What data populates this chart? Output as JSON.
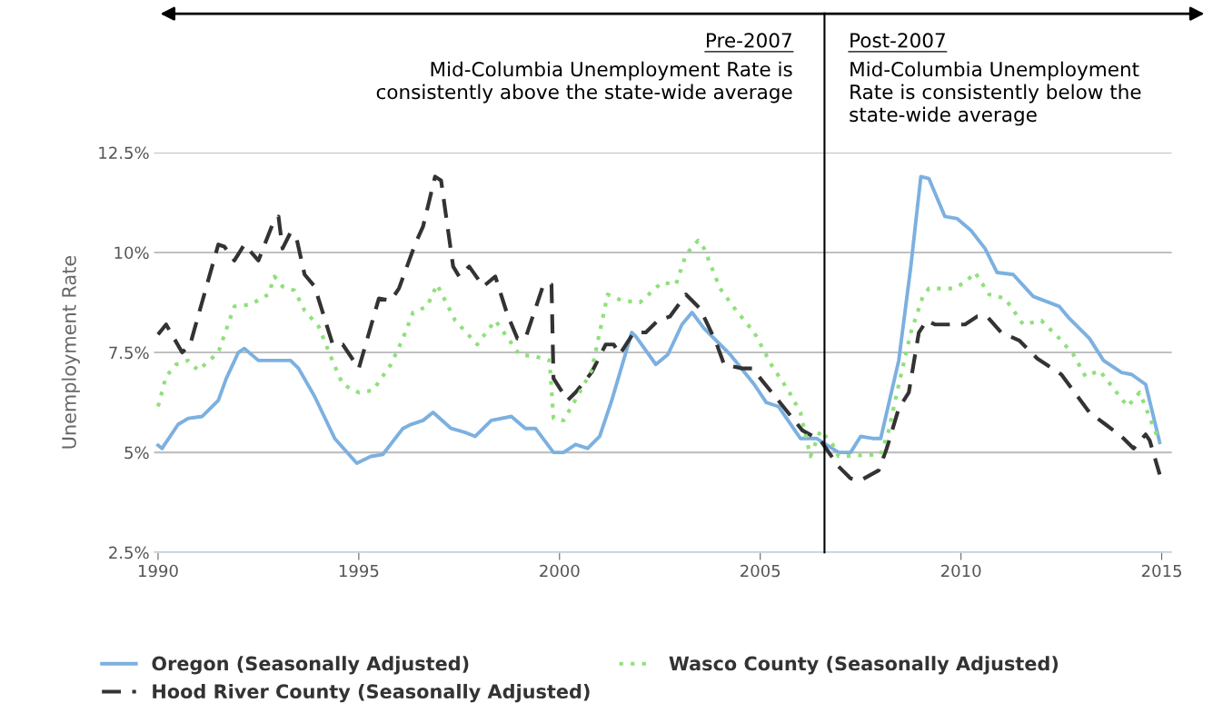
{
  "chart_data": {
    "type": "line",
    "ylabel": "Unemployment Rate",
    "xlim": [
      1989.9,
      2015.25
    ],
    "ylim": [
      2.5,
      12.5
    ],
    "xticks": [
      1990,
      1995,
      2000,
      2005,
      2010,
      2015
    ],
    "yticks": [
      {
        "value": 2.5,
        "label": "2.5%"
      },
      {
        "value": 5,
        "label": "5%"
      },
      {
        "value": 7.5,
        "label": "7.5%"
      },
      {
        "value": 10,
        "label": "10%"
      },
      {
        "value": 12.5,
        "label": "12.5%"
      }
    ],
    "grid": "y",
    "legend": "bottom left",
    "marker": "none",
    "ref_lines": [
      {
        "axis": "x",
        "value": 2006.6,
        "color": "#000000",
        "line_style": "solid"
      }
    ],
    "annotations": [
      "Pre-2007",
      "Mid-Columbia Unemployment Rate is\nconsistently above the state-wide average",
      "Post-2007",
      "Mid-Columbia Unemployment\nRate is consistently below the\nstate-wide average"
    ],
    "series": [
      {
        "name": "Oregon (Seasonally Adjusted)",
        "color": "#7cb0e0",
        "line_style": "solid",
        "x": [
          1990.0,
          1990.1,
          1990.5,
          1990.75,
          1991.1,
          1991.5,
          1991.7,
          1992.0,
          1992.15,
          1992.5,
          1993.3,
          1993.5,
          1993.9,
          1994.4,
          1994.95,
          1995.3,
          1995.6,
          1996.1,
          1996.3,
          1996.6,
          1996.85,
          1997.3,
          1997.65,
          1997.9,
          1998.3,
          1998.8,
          1999.15,
          1999.4,
          1999.85,
          2000.1,
          2000.4,
          2000.7,
          2001.0,
          2001.3,
          2001.8,
          2001.9,
          2002.4,
          2002.7,
          2003.05,
          2003.3,
          2003.6,
          2004.25,
          2004.85,
          2005.15,
          2005.45,
          2006.0,
          2006.4,
          2006.95,
          2007.25,
          2007.5,
          2007.8,
          2008.0,
          2008.45,
          2008.75,
          2009.0,
          2009.2,
          2009.6,
          2009.9,
          2010.25,
          2010.6,
          2010.9,
          2011.3,
          2011.8,
          2012.45,
          2012.7,
          2013.2,
          2013.55,
          2014.0,
          2014.25,
          2014.6,
          2014.95
        ],
        "values": [
          5.18,
          5.1,
          5.7,
          5.85,
          5.9,
          6.3,
          6.85,
          7.5,
          7.6,
          7.3,
          7.3,
          7.1,
          6.4,
          5.35,
          4.73,
          4.9,
          4.95,
          5.6,
          5.7,
          5.8,
          6.0,
          5.6,
          5.5,
          5.4,
          5.8,
          5.9,
          5.6,
          5.6,
          5.0,
          5.0,
          5.2,
          5.1,
          5.4,
          6.3,
          8.0,
          7.9,
          7.2,
          7.45,
          8.2,
          8.5,
          8.1,
          7.45,
          6.7,
          6.25,
          6.15,
          5.35,
          5.35,
          5.0,
          5.0,
          5.4,
          5.35,
          5.35,
          7.3,
          9.65,
          11.9,
          11.85,
          10.9,
          10.85,
          10.55,
          10.1,
          9.5,
          9.45,
          8.9,
          8.65,
          8.35,
          7.85,
          7.3,
          7.0,
          6.95,
          6.7,
          5.25
        ]
      },
      {
        "name": "Hood River County (Seasonally Adjusted)",
        "color": "#333333",
        "line_style": "dashed",
        "x": [
          1990.0,
          1990.2,
          1990.6,
          1990.8,
          1991.5,
          1991.65,
          1991.9,
          1992.15,
          1992.5,
          1992.85,
          1993.0,
          1993.1,
          1993.3,
          1993.45,
          1993.65,
          1993.9,
          1994.35,
          1994.6,
          1995.0,
          1995.5,
          1995.8,
          1996.0,
          1996.4,
          1996.6,
          1996.9,
          1997.05,
          1997.35,
          1997.5,
          1997.75,
          1998.1,
          1998.4,
          1998.7,
          1998.95,
          1999.15,
          1999.6,
          1999.8,
          1999.85,
          2000.2,
          2000.4,
          2000.8,
          2001.15,
          2001.35,
          2001.5,
          2001.85,
          2002.15,
          2002.45,
          2002.75,
          2003.15,
          2003.5,
          2003.9,
          2004.1,
          2004.55,
          2004.8,
          2005.45,
          2006.05,
          2006.5,
          2006.95,
          2007.25,
          2007.5,
          2007.95,
          2008.15,
          2008.45,
          2008.7,
          2008.95,
          2009.15,
          2009.35,
          2010.1,
          2010.4,
          2010.65,
          2011.0,
          2011.45,
          2011.9,
          2012.5,
          2013.2,
          2013.6,
          2014.0,
          2014.3,
          2014.6,
          2014.7,
          2014.95
        ],
        "values": [
          7.95,
          8.2,
          7.5,
          7.7,
          10.2,
          10.15,
          9.8,
          10.2,
          9.8,
          10.7,
          10.9,
          10.1,
          10.5,
          10.35,
          9.45,
          9.15,
          7.7,
          7.7,
          7.1,
          8.85,
          8.8,
          9.1,
          10.2,
          10.65,
          11.9,
          11.8,
          9.65,
          9.4,
          9.65,
          9.15,
          9.4,
          8.45,
          7.85,
          7.85,
          9.2,
          9.2,
          6.85,
          6.3,
          6.5,
          7.0,
          7.7,
          7.7,
          7.45,
          8.0,
          8.0,
          8.3,
          8.4,
          8.95,
          8.6,
          7.75,
          7.2,
          7.1,
          7.1,
          6.3,
          5.55,
          5.3,
          4.65,
          4.35,
          4.3,
          4.55,
          5.1,
          6.1,
          6.5,
          8.0,
          8.3,
          8.2,
          8.2,
          8.4,
          8.4,
          8.0,
          7.8,
          7.35,
          6.95,
          6.0,
          5.7,
          5.4,
          5.1,
          5.45,
          5.3,
          4.45
        ]
      },
      {
        "name": "Wasco County (Seasonally Adjusted)",
        "color": "#90e07a",
        "line_style": "dotted",
        "x": [
          1990.0,
          1990.2,
          1990.45,
          1990.75,
          1991.0,
          1991.5,
          1991.9,
          1992.3,
          1992.75,
          1992.9,
          1993.1,
          1993.4,
          1993.65,
          1994.0,
          1994.3,
          1994.6,
          1995.0,
          1995.35,
          1995.8,
          1996.1,
          1996.35,
          1996.7,
          1996.95,
          1997.4,
          1997.95,
          1998.4,
          1999.0,
          1999.4,
          1999.75,
          1999.85,
          2000.1,
          2000.5,
          2000.8,
          2001.2,
          2001.55,
          2002.0,
          2002.55,
          2002.9,
          2003.15,
          2003.45,
          2003.6,
          2004.0,
          2004.4,
          2004.85,
          2005.3,
          2005.7,
          2006.0,
          2006.25,
          2006.5,
          2006.8,
          2006.95,
          2008.0,
          2008.2,
          2008.45,
          2008.75,
          2009.05,
          2009.2,
          2009.8,
          2010.1,
          2010.35,
          2010.7,
          2011.1,
          2011.55,
          2012.0,
          2012.45,
          2012.8,
          2013.1,
          2013.45,
          2013.8,
          2014.15,
          2014.45,
          2014.95
        ],
        "values": [
          6.15,
          6.9,
          7.2,
          7.3,
          7.05,
          7.5,
          8.65,
          8.7,
          8.95,
          9.4,
          9.15,
          9.05,
          8.55,
          8.15,
          7.4,
          6.7,
          6.5,
          6.55,
          7.2,
          7.85,
          8.5,
          8.65,
          9.2,
          8.3,
          7.7,
          8.3,
          7.45,
          7.4,
          7.3,
          5.85,
          5.8,
          6.5,
          7.05,
          8.95,
          8.8,
          8.75,
          9.25,
          9.2,
          9.95,
          10.3,
          10.1,
          9.1,
          8.55,
          8.0,
          7.15,
          6.55,
          6.0,
          4.9,
          5.55,
          5.2,
          4.9,
          4.95,
          5.55,
          6.7,
          8.0,
          8.9,
          9.1,
          9.1,
          9.25,
          9.5,
          8.95,
          8.85,
          8.2,
          8.3,
          7.85,
          7.45,
          6.9,
          7.05,
          6.6,
          6.15,
          6.5,
          5.25
        ]
      }
    ]
  }
}
